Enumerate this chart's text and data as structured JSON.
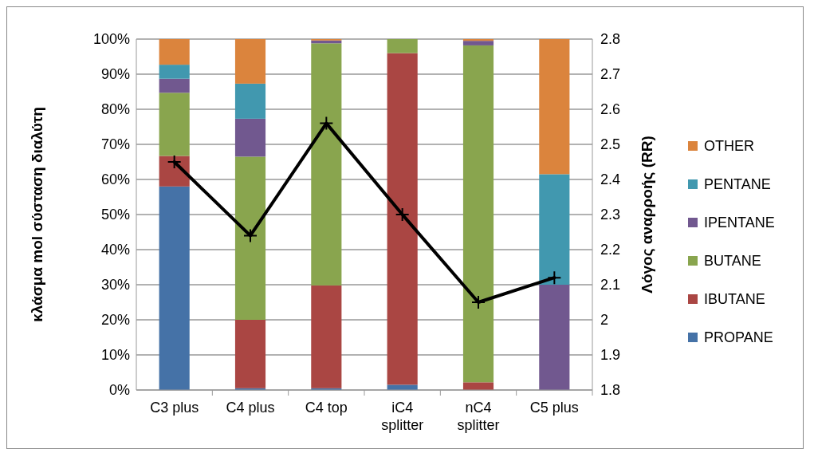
{
  "chart_data": {
    "type": "bar",
    "stacked": true,
    "ylabel": "κλάσμα mol σύσταση διαλύτη",
    "y2label": "Λόγος αναρροής (RR)",
    "categories": [
      "C3 plus",
      "C4 plus",
      "C4 top",
      "iC4 splitter",
      "nC4 splitter",
      "C5 plus"
    ],
    "series": [
      {
        "name": "PROPANE",
        "color": "#4572a7",
        "values": [
          58,
          0.5,
          0.5,
          1.5,
          0,
          0
        ]
      },
      {
        "name": "IBUTANE",
        "color": "#aa4643",
        "values": [
          8.7,
          19.5,
          29.3,
          94.5,
          2.2,
          0
        ]
      },
      {
        "name": "BUTANE",
        "color": "#89a54e",
        "values": [
          18,
          46.5,
          69,
          4,
          96,
          0
        ]
      },
      {
        "name": "IPENTANE",
        "color": "#71588f",
        "values": [
          4,
          10.8,
          0.8,
          0,
          1.3,
          30
        ]
      },
      {
        "name": "PENTANE",
        "color": "#4198af",
        "values": [
          4,
          10,
          0,
          0,
          0,
          31.5
        ]
      },
      {
        "name": "OTHER",
        "color": "#db843d",
        "values": [
          7.3,
          12.7,
          0.4,
          0,
          0.5,
          38.5
        ]
      },
      {
        "type": "line",
        "axis": "y2",
        "color": "#000000",
        "marker": "cross",
        "values": [
          2.45,
          2.24,
          2.56,
          2.3,
          2.05,
          2.12
        ]
      }
    ],
    "ylim": [
      0,
      100
    ],
    "yticks": [
      {
        "value": 0,
        "label": "0%"
      },
      {
        "value": 10,
        "label": "10%"
      },
      {
        "value": 20,
        "label": "20%"
      },
      {
        "value": 30,
        "label": "30%"
      },
      {
        "value": 40,
        "label": "40%"
      },
      {
        "value": 50,
        "label": "50%"
      },
      {
        "value": 60,
        "label": "60%"
      },
      {
        "value": 70,
        "label": "70%"
      },
      {
        "value": 80,
        "label": "80%"
      },
      {
        "value": 90,
        "label": "90%"
      },
      {
        "value": 100,
        "label": "100%"
      }
    ],
    "y2lim": [
      1.8,
      2.8
    ],
    "y2ticks": [
      1.8,
      1.9,
      2,
      2.1,
      2.2,
      2.3,
      2.4,
      2.5,
      2.6,
      2.7,
      2.8
    ],
    "grid": "y",
    "legend": "right"
  }
}
